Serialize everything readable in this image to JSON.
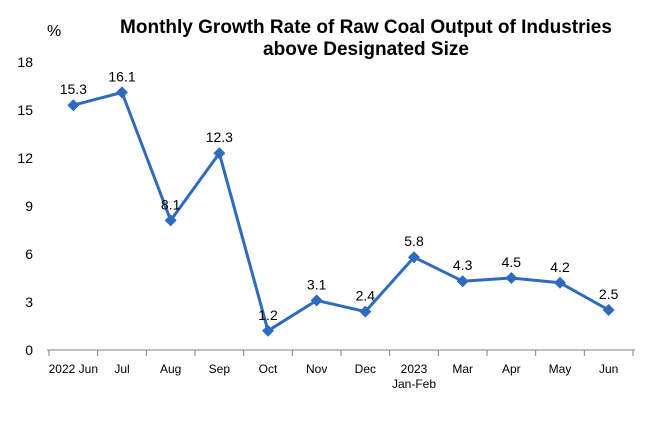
{
  "chart_data": {
    "type": "line",
    "title": "Monthly Growth Rate of Raw Coal Output of Industries above Designated Size",
    "title_lines": [
      "Monthly Growth Rate of Raw Coal Output of Industries",
      "above Designated Size"
    ],
    "ylabel": "%",
    "categories": [
      {
        "line1": "2022 Jun",
        "line2": ""
      },
      {
        "line1": "Jul",
        "line2": ""
      },
      {
        "line1": "Aug",
        "line2": ""
      },
      {
        "line1": "Sep",
        "line2": ""
      },
      {
        "line1": "Oct",
        "line2": ""
      },
      {
        "line1": "Nov",
        "line2": ""
      },
      {
        "line1": "Dec",
        "line2": ""
      },
      {
        "line1": "2023",
        "line2": "Jan-Feb"
      },
      {
        "line1": "Mar",
        "line2": ""
      },
      {
        "line1": "Apr",
        "line2": ""
      },
      {
        "line1": "May",
        "line2": ""
      },
      {
        "line1": "Jun",
        "line2": ""
      }
    ],
    "values": [
      15.3,
      16.1,
      8.1,
      12.3,
      1.2,
      3.1,
      2.4,
      5.8,
      4.3,
      4.5,
      4.2,
      2.5
    ],
    "data_labels": [
      "15.3",
      "16.1",
      "8.1",
      "12.3",
      "1.2",
      "3.1",
      "2.4",
      "5.8",
      "4.3",
      "4.5",
      "4.2",
      "2.5"
    ],
    "ylim": [
      0,
      18
    ],
    "yticks": [
      "0",
      "3",
      "6",
      "9",
      "12",
      "15",
      "18"
    ],
    "grid": false,
    "legend": "none",
    "line_color": "#2e6bbf",
    "marker": "diamond"
  }
}
